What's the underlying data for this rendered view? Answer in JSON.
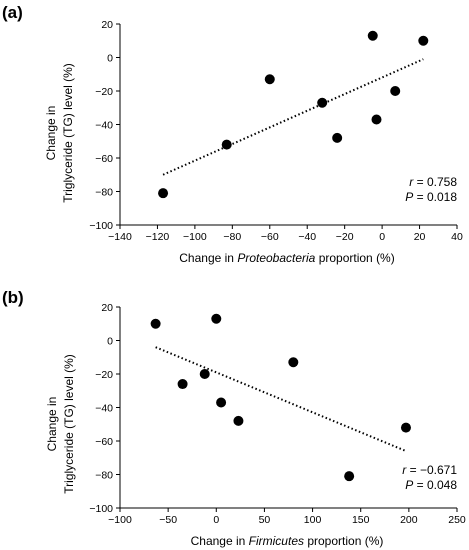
{
  "chart_data": [
    {
      "type": "scatter",
      "panel_label": "(a)",
      "xlabel_prefix": "Change in ",
      "xlabel_italic": "Proteobacteria",
      "xlabel_suffix": " proportion (%)",
      "ylabel_line1": "Change in",
      "ylabel_line2": "Triglyceride (TG) level (%)",
      "xlim": [
        -140,
        40
      ],
      "ylim": [
        -100,
        20
      ],
      "xticks": [
        -140,
        -120,
        -100,
        -80,
        -60,
        -40,
        -20,
        0,
        20,
        40
      ],
      "yticks": [
        20,
        0,
        -20,
        -40,
        -60,
        -80,
        -100
      ],
      "xtick_labels": [
        "−140",
        "−120",
        "−100",
        "−80",
        "−60",
        "−40",
        "−20",
        "0",
        "20",
        "40"
      ],
      "ytick_labels": [
        "20",
        "0",
        "−20",
        "−40",
        "−60",
        "−80",
        "−100"
      ],
      "points": [
        {
          "x": -117,
          "y": -81
        },
        {
          "x": -83,
          "y": -52
        },
        {
          "x": -60,
          "y": -13
        },
        {
          "x": -32,
          "y": -27
        },
        {
          "x": -24,
          "y": -48
        },
        {
          "x": -5,
          "y": 13
        },
        {
          "x": -3,
          "y": -37
        },
        {
          "x": 7,
          "y": -20
        },
        {
          "x": 22,
          "y": 10
        }
      ],
      "trendline": {
        "x": [
          -117,
          22
        ],
        "y": [
          -70,
          -1
        ]
      },
      "stats": {
        "r_label": "r",
        "r_value": " = 0.758",
        "p_label": "P",
        "p_value": " = 0.018"
      },
      "grid": false
    },
    {
      "type": "scatter",
      "panel_label": "(b)",
      "xlabel_prefix": "Change in ",
      "xlabel_italic": "Firmicutes",
      "xlabel_suffix": " proportion (%)",
      "ylabel_line1": "Change in",
      "ylabel_line2": "Triglyceride (TG) level (%)",
      "xlim": [
        -100,
        250
      ],
      "ylim": [
        -100,
        20
      ],
      "xticks": [
        -100,
        -50,
        0,
        50,
        100,
        150,
        200,
        250
      ],
      "yticks": [
        20,
        0,
        -20,
        -40,
        -60,
        -80,
        -100
      ],
      "xtick_labels": [
        "−100",
        "−50",
        "0",
        "50",
        "100",
        "150",
        "200",
        "250"
      ],
      "ytick_labels": [
        "20",
        "0",
        "−20",
        "−40",
        "−60",
        "−80",
        "−100"
      ],
      "points": [
        {
          "x": -63,
          "y": 10
        },
        {
          "x": -35,
          "y": -26
        },
        {
          "x": -12,
          "y": -20
        },
        {
          "x": 0,
          "y": 13
        },
        {
          "x": 5,
          "y": -37
        },
        {
          "x": 23,
          "y": -48
        },
        {
          "x": 80,
          "y": -13
        },
        {
          "x": 138,
          "y": -81
        },
        {
          "x": 197,
          "y": -52
        }
      ],
      "trendline": {
        "x": [
          -63,
          197
        ],
        "y": [
          -4,
          -66
        ]
      },
      "stats": {
        "r_label": "r",
        "r_value": " = −0.671",
        "p_label": "P",
        "p_value": " = 0.048"
      },
      "grid": false
    }
  ]
}
